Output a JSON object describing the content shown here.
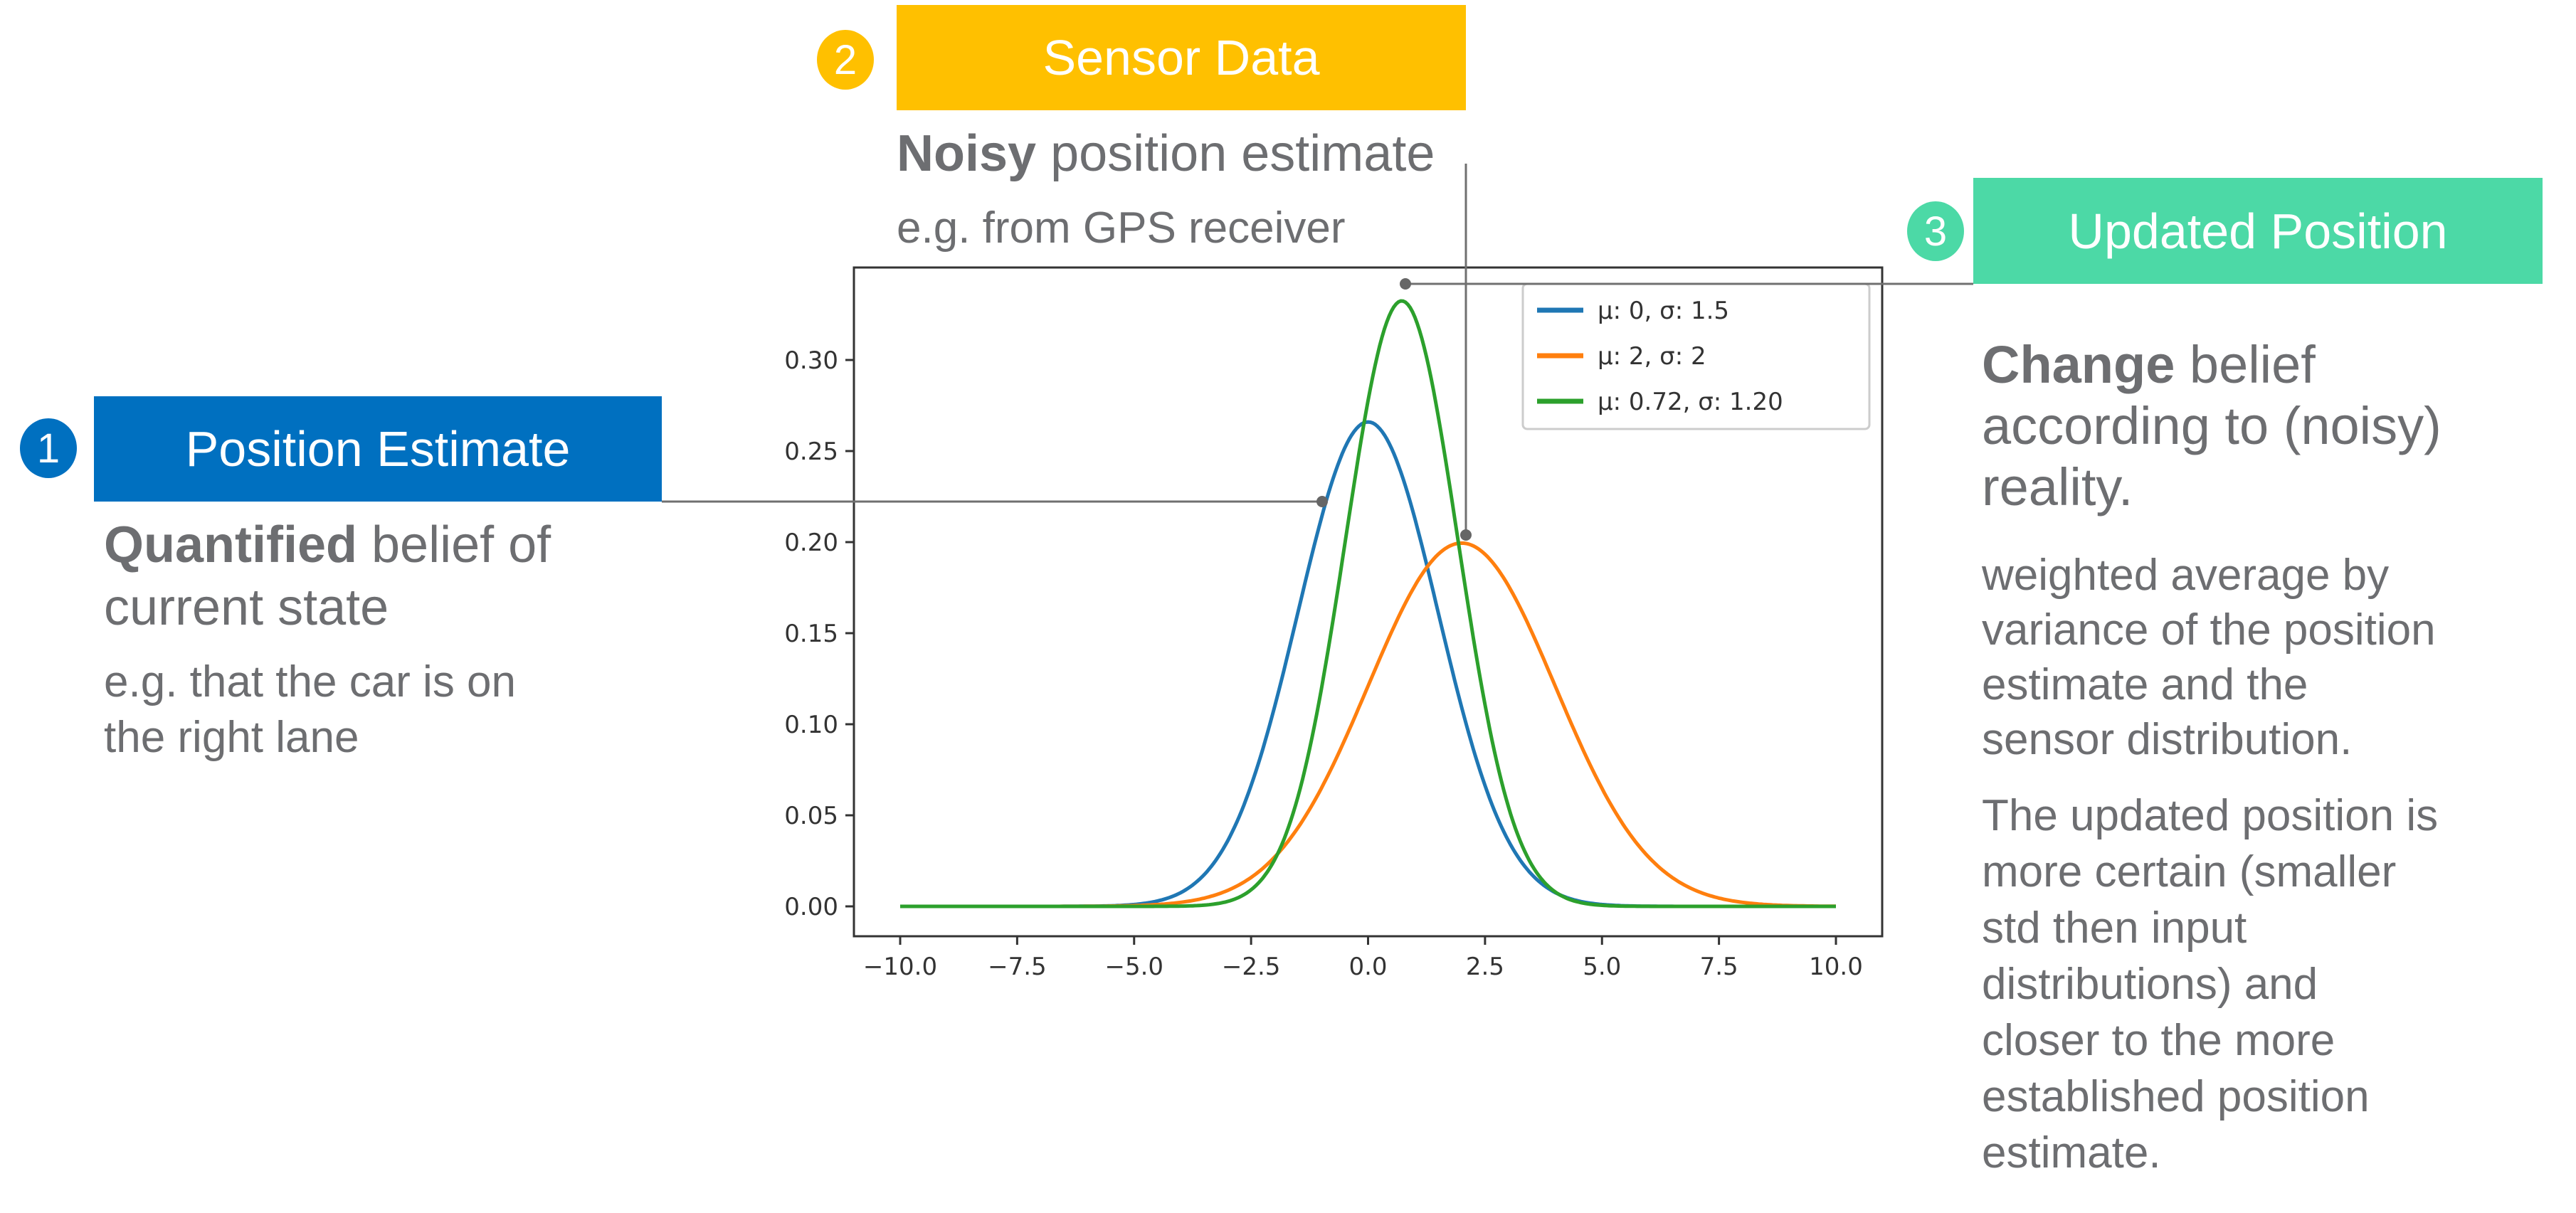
{
  "colors": {
    "pos": "#0070c0",
    "sensor": "#ffc000",
    "update": "#4cd9a6",
    "text": "#6d6e71",
    "connector": "#707070"
  },
  "step1": {
    "number": "1",
    "title": "Position Estimate",
    "bold": "Quantified",
    "line1_rest": " belief of",
    "line2": "current state",
    "detail": [
      "e.g. that the car is on",
      "the right lane"
    ]
  },
  "step2": {
    "number": "2",
    "title": "Sensor Data",
    "bold": "Noisy",
    "line1_rest": " position estimate",
    "detail": "e.g. from GPS receiver"
  },
  "step3": {
    "number": "3",
    "title": "Updated Position",
    "bold": "Change",
    "line1_rest": " belief",
    "lines": [
      "according to (noisy)",
      "reality."
    ],
    "detail1": [
      "weighted average by",
      "variance of the position",
      "estimate and the",
      "sensor distribution."
    ],
    "detail2": [
      "The updated position is",
      "more certain (smaller",
      "std then input",
      "distributions) and",
      "closer to the more",
      "established position",
      "estimate."
    ]
  },
  "chart_data": {
    "type": "line",
    "title": "",
    "xlabel": "",
    "ylabel": "",
    "xlim": [
      -10,
      10
    ],
    "ylim": [
      0,
      0.34
    ],
    "xticks": [
      "−10.0",
      "−7.5",
      "−5.0",
      "−2.5",
      "0.0",
      "2.5",
      "5.0",
      "7.5",
      "10.0"
    ],
    "xtick_values": [
      -10,
      -7.5,
      -5,
      -2.5,
      0,
      2.5,
      5,
      7.5,
      10
    ],
    "yticks": [
      "0.00",
      "0.05",
      "0.10",
      "0.15",
      "0.20",
      "0.25",
      "0.30"
    ],
    "ytick_values": [
      0,
      0.05,
      0.1,
      0.15,
      0.2,
      0.25,
      0.3
    ],
    "legend_position": "top-right",
    "series": [
      {
        "name": "μ: 0, σ: 1.5",
        "mu": 0,
        "sigma": 1.5,
        "color": "#1f77b4"
      },
      {
        "name": "μ: 2, σ: 2",
        "mu": 2,
        "sigma": 2,
        "color": "#ff7f0e"
      },
      {
        "name": "μ: 0.72, σ: 1.20",
        "mu": 0.72,
        "sigma": 1.2,
        "color": "#2ca02c"
      }
    ]
  }
}
